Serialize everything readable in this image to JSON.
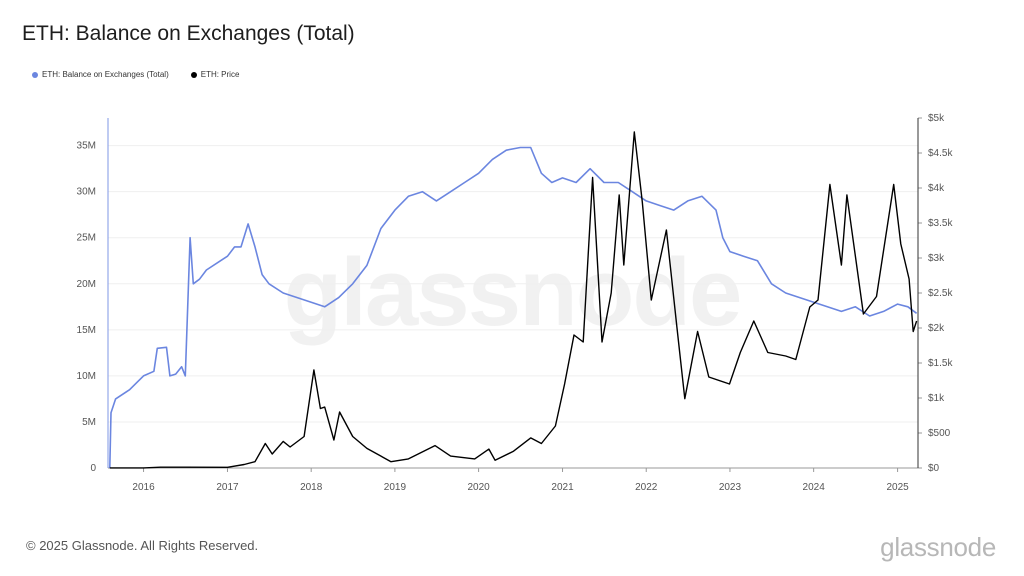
{
  "header": {
    "title": "ETH: Balance on Exchanges (Total)"
  },
  "legend": {
    "items": [
      {
        "label": "ETH: Balance on Exchanges (Total)",
        "color": "#6b86e0"
      },
      {
        "label": "ETH: Price",
        "color": "#000000"
      }
    ]
  },
  "footer": {
    "copyright": "© 2025 Glassnode. All Rights Reserved.",
    "brand": "glassnode"
  },
  "watermark": "glassnode",
  "chart_data": {
    "type": "line",
    "x_ticks": [
      "2016",
      "2017",
      "2018",
      "2019",
      "2020",
      "2021",
      "2022",
      "2023",
      "2024",
      "2025"
    ],
    "xlim": [
      "2015-07-30",
      "2025-03-31"
    ],
    "y_left_ticks": [
      "0",
      "5M",
      "10M",
      "15M",
      "20M",
      "25M",
      "30M",
      "35M"
    ],
    "y_left_lim": [
      0,
      38000000
    ],
    "y_right_ticks": [
      "$0",
      "$500",
      "$1k",
      "$1.5k",
      "$2k",
      "$2.5k",
      "$3k",
      "$3.5k",
      "$4k",
      "$4.5k",
      "$5k"
    ],
    "y_right_lim": [
      0,
      5000
    ],
    "grid": "horizontal",
    "series": [
      {
        "name": "ETH: Balance on Exchanges (Total)",
        "axis": "left",
        "color": "#6b86e0",
        "points": [
          [
            "2015-08-07",
            0
          ],
          [
            "2015-08-12",
            6000000
          ],
          [
            "2015-09-01",
            7500000
          ],
          [
            "2015-11-01",
            8500000
          ],
          [
            "2016-01-01",
            10000000
          ],
          [
            "2016-02-15",
            10500000
          ],
          [
            "2016-03-01",
            13000000
          ],
          [
            "2016-04-10",
            13100000
          ],
          [
            "2016-04-25",
            10000000
          ],
          [
            "2016-05-20",
            10200000
          ],
          [
            "2016-06-15",
            11000000
          ],
          [
            "2016-07-01",
            10000000
          ],
          [
            "2016-07-15",
            20000000
          ],
          [
            "2016-07-22",
            25000000
          ],
          [
            "2016-08-05",
            20000000
          ],
          [
            "2016-09-01",
            20500000
          ],
          [
            "2016-10-01",
            21500000
          ],
          [
            "2016-12-01",
            22500000
          ],
          [
            "2017-01-01",
            23000000
          ],
          [
            "2017-02-01",
            24000000
          ],
          [
            "2017-03-01",
            24000000
          ],
          [
            "2017-04-01",
            26500000
          ],
          [
            "2017-05-01",
            24000000
          ],
          [
            "2017-06-01",
            21000000
          ],
          [
            "2017-07-01",
            20000000
          ],
          [
            "2017-09-01",
            19000000
          ],
          [
            "2017-11-01",
            18500000
          ],
          [
            "2018-01-01",
            18000000
          ],
          [
            "2018-03-01",
            17500000
          ],
          [
            "2018-05-01",
            18500000
          ],
          [
            "2018-07-01",
            20000000
          ],
          [
            "2018-09-01",
            22000000
          ],
          [
            "2018-11-01",
            26000000
          ],
          [
            "2019-01-01",
            28000000
          ],
          [
            "2019-03-01",
            29500000
          ],
          [
            "2019-05-01",
            30000000
          ],
          [
            "2019-07-01",
            29000000
          ],
          [
            "2019-09-01",
            30000000
          ],
          [
            "2019-11-01",
            31000000
          ],
          [
            "2020-01-01",
            32000000
          ],
          [
            "2020-03-01",
            33500000
          ],
          [
            "2020-05-01",
            34500000
          ],
          [
            "2020-07-01",
            34800000
          ],
          [
            "2020-08-15",
            34800000
          ],
          [
            "2020-10-01",
            32000000
          ],
          [
            "2020-11-15",
            31000000
          ],
          [
            "2021-01-01",
            31500000
          ],
          [
            "2021-03-01",
            31000000
          ],
          [
            "2021-05-01",
            32500000
          ],
          [
            "2021-07-01",
            31000000
          ],
          [
            "2021-09-01",
            31000000
          ],
          [
            "2021-11-01",
            30000000
          ],
          [
            "2022-01-01",
            29000000
          ],
          [
            "2022-03-01",
            28500000
          ],
          [
            "2022-05-01",
            28000000
          ],
          [
            "2022-07-01",
            29000000
          ],
          [
            "2022-09-01",
            29500000
          ],
          [
            "2022-11-01",
            28000000
          ],
          [
            "2022-12-01",
            25000000
          ],
          [
            "2023-01-01",
            23500000
          ],
          [
            "2023-03-01",
            23000000
          ],
          [
            "2023-05-01",
            22500000
          ],
          [
            "2023-07-01",
            20000000
          ],
          [
            "2023-09-01",
            19000000
          ],
          [
            "2023-11-01",
            18500000
          ],
          [
            "2024-01-01",
            18000000
          ],
          [
            "2024-03-01",
            17500000
          ],
          [
            "2024-05-01",
            17000000
          ],
          [
            "2024-07-01",
            17500000
          ],
          [
            "2024-09-01",
            16500000
          ],
          [
            "2024-11-01",
            17000000
          ],
          [
            "2025-01-01",
            17800000
          ],
          [
            "2025-02-15",
            17500000
          ],
          [
            "2025-03-25",
            16800000
          ]
        ]
      },
      {
        "name": "ETH: Price",
        "axis": "right",
        "color": "#000000",
        "points": [
          [
            "2015-08-07",
            1
          ],
          [
            "2016-01-01",
            1
          ],
          [
            "2016-03-15",
            12
          ],
          [
            "2016-07-01",
            12
          ],
          [
            "2017-01-01",
            10
          ],
          [
            "2017-03-15",
            50
          ],
          [
            "2017-05-01",
            90
          ],
          [
            "2017-06-15",
            350
          ],
          [
            "2017-07-15",
            200
          ],
          [
            "2017-09-01",
            380
          ],
          [
            "2017-10-01",
            300
          ],
          [
            "2017-12-01",
            450
          ],
          [
            "2018-01-13",
            1400
          ],
          [
            "2018-02-10",
            850
          ],
          [
            "2018-03-01",
            870
          ],
          [
            "2018-04-10",
            400
          ],
          [
            "2018-05-05",
            800
          ],
          [
            "2018-07-01",
            450
          ],
          [
            "2018-09-01",
            280
          ],
          [
            "2018-12-15",
            90
          ],
          [
            "2019-03-01",
            130
          ],
          [
            "2019-06-25",
            320
          ],
          [
            "2019-09-01",
            170
          ],
          [
            "2019-12-15",
            130
          ],
          [
            "2020-02-15",
            270
          ],
          [
            "2020-03-13",
            110
          ],
          [
            "2020-06-01",
            240
          ],
          [
            "2020-08-15",
            430
          ],
          [
            "2020-10-01",
            350
          ],
          [
            "2020-12-01",
            600
          ],
          [
            "2021-01-10",
            1200
          ],
          [
            "2021-02-20",
            1900
          ],
          [
            "2021-04-01",
            1800
          ],
          [
            "2021-05-12",
            4150
          ],
          [
            "2021-06-22",
            1800
          ],
          [
            "2021-08-01",
            2500
          ],
          [
            "2021-09-05",
            3900
          ],
          [
            "2021-09-25",
            2900
          ],
          [
            "2021-11-10",
            4800
          ],
          [
            "2021-12-15",
            3800
          ],
          [
            "2022-01-23",
            2400
          ],
          [
            "2022-03-30",
            3400
          ],
          [
            "2022-05-15",
            2000
          ],
          [
            "2022-06-18",
            990
          ],
          [
            "2022-08-13",
            1950
          ],
          [
            "2022-10-01",
            1300
          ],
          [
            "2022-12-30",
            1200
          ],
          [
            "2023-02-15",
            1650
          ],
          [
            "2023-04-15",
            2100
          ],
          [
            "2023-06-15",
            1650
          ],
          [
            "2023-09-01",
            1600
          ],
          [
            "2023-10-15",
            1550
          ],
          [
            "2023-12-15",
            2300
          ],
          [
            "2024-01-20",
            2400
          ],
          [
            "2024-03-12",
            4050
          ],
          [
            "2024-05-01",
            2900
          ],
          [
            "2024-05-25",
            3900
          ],
          [
            "2024-08-05",
            2200
          ],
          [
            "2024-10-01",
            2450
          ],
          [
            "2024-12-15",
            4050
          ],
          [
            "2025-01-15",
            3200
          ],
          [
            "2025-02-20",
            2700
          ],
          [
            "2025-03-10",
            1950
          ],
          [
            "2025-03-25",
            2100
          ]
        ]
      }
    ]
  }
}
